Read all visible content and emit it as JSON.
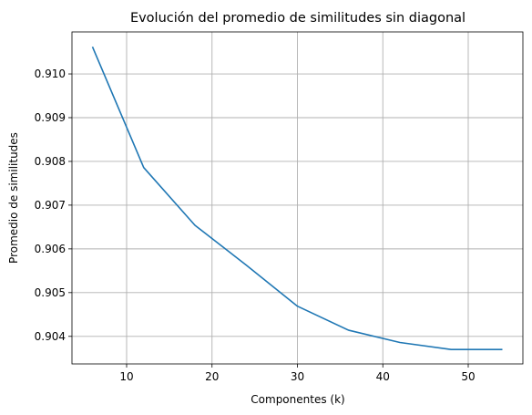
{
  "chart_data": {
    "type": "line",
    "title": "Evolución del promedio de similitudes sin diagonal",
    "xlabel": "Componentes (k)",
    "ylabel": "Promedio de similitudes",
    "xlim": [
      3.6,
      56.4
    ],
    "ylim": [
      0.90337,
      0.91096
    ],
    "xticks": [
      10,
      20,
      30,
      40,
      50
    ],
    "yticks": [
      0.904,
      0.905,
      0.906,
      0.907,
      0.908,
      0.909,
      0.91
    ],
    "ytick_labels": [
      "0.904",
      "0.905",
      "0.906",
      "0.907",
      "0.908",
      "0.909",
      "0.910"
    ],
    "grid": true,
    "series": [
      {
        "color": "#1f77b4",
        "x": [
          6,
          12,
          18,
          24,
          30,
          36,
          42,
          48,
          54
        ],
        "y": [
          0.91062,
          0.90786,
          0.90654,
          0.90563,
          0.90469,
          0.90414,
          0.90386,
          0.9037,
          0.9037
        ]
      }
    ]
  }
}
